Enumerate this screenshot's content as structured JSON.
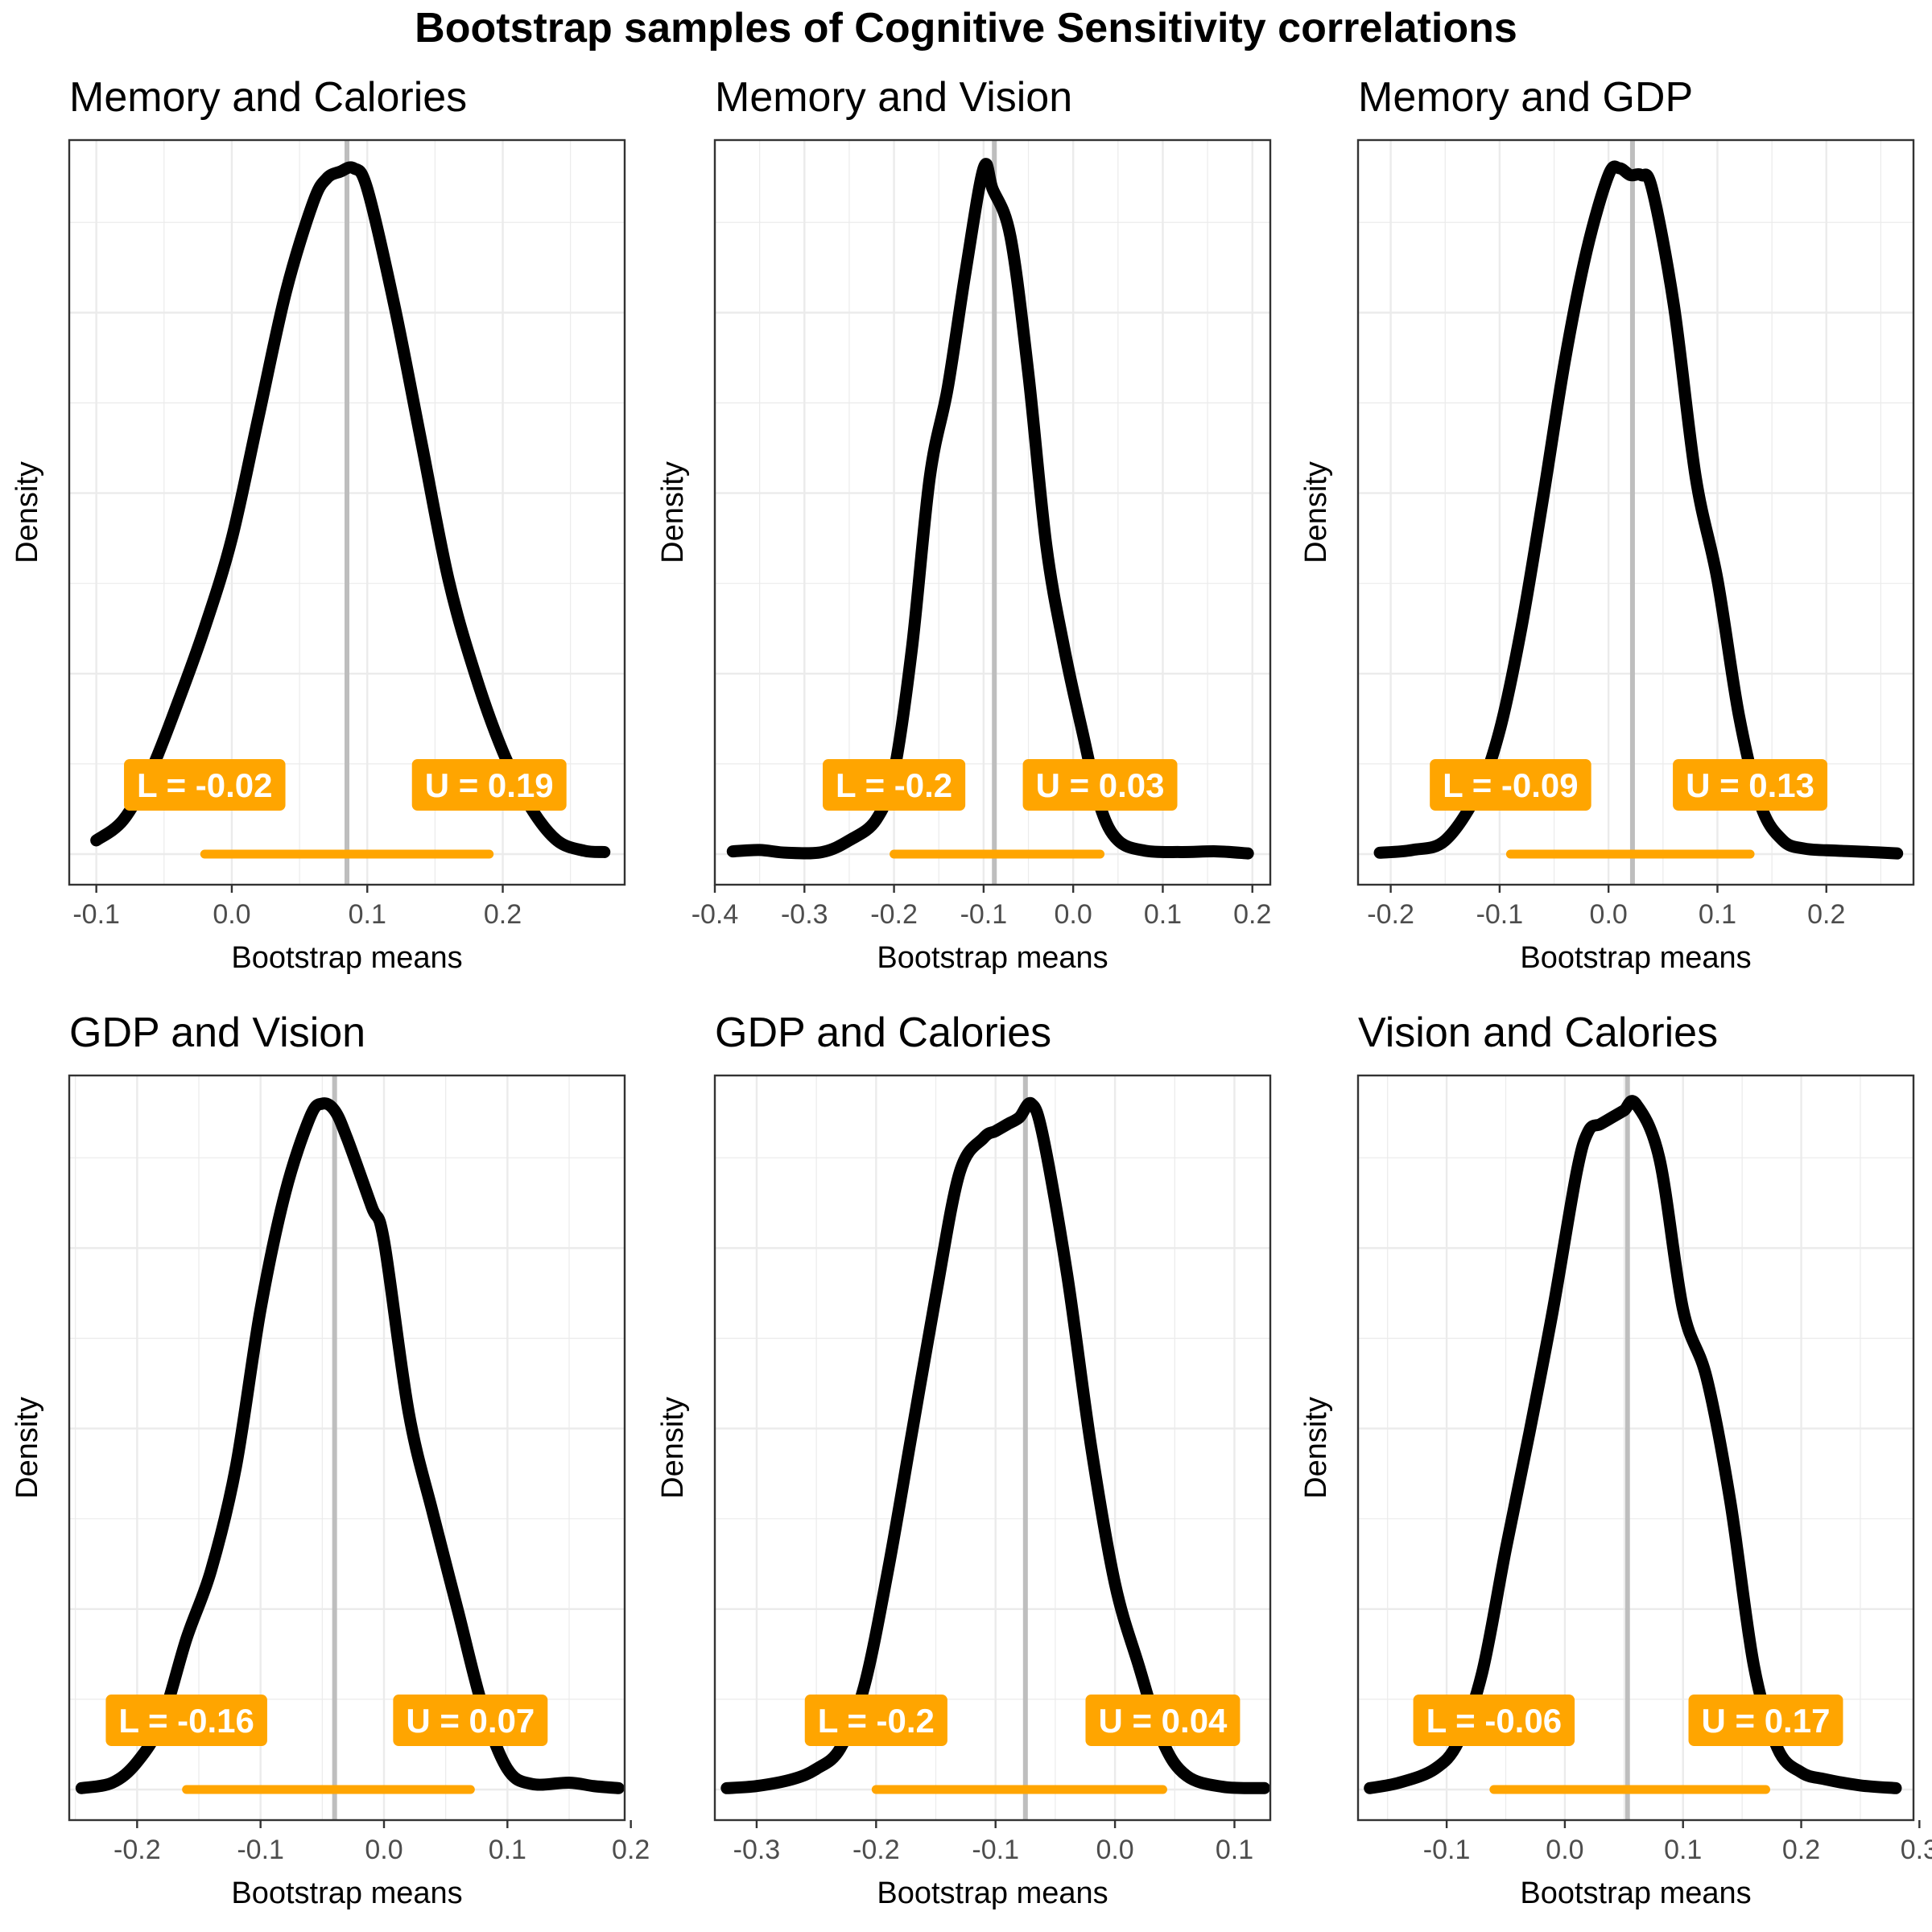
{
  "figure": {
    "title": "Bootstrap samples of Cognitive Sensitivity correlations"
  },
  "colors": {
    "density": "#000000",
    "mean_line": "#bebebe",
    "interval": "#ffa500",
    "label_text": "#ffffff",
    "grid": "#ebebeb",
    "panel_border": "#333333"
  },
  "chart_data": [
    {
      "type": "line",
      "title": "Memory and Calories",
      "xlabel": "Bootstrap means",
      "ylabel": "Density",
      "xlim": [
        -0.12,
        0.29
      ],
      "x_ticks": [
        -0.1,
        0.0,
        0.1,
        0.2
      ],
      "x_tick_labels": [
        "-0.1",
        "0.0",
        "0.1",
        "0.2"
      ],
      "y_axis_labels_shown": false,
      "grid": true,
      "mean": 0.085,
      "interval": {
        "lower": -0.02,
        "upper": 0.19
      },
      "interval_labels": {
        "lower": "L =  -0.02",
        "upper": "U =  0.19"
      },
      "density_curve": {
        "x": [
          -0.1,
          -0.08,
          -0.06,
          -0.04,
          -0.02,
          0.0,
          0.02,
          0.04,
          0.06,
          0.07,
          0.08,
          0.09,
          0.1,
          0.12,
          0.14,
          0.16,
          0.18,
          0.2,
          0.22,
          0.24,
          0.26,
          0.275
        ],
        "density": [
          0.02,
          0.05,
          0.12,
          0.22,
          0.33,
          0.46,
          0.64,
          0.82,
          0.95,
          0.985,
          0.995,
          1.0,
          0.97,
          0.8,
          0.6,
          0.4,
          0.26,
          0.15,
          0.07,
          0.02,
          0.005,
          0.003
        ]
      }
    },
    {
      "type": "line",
      "title": "Memory and Vision",
      "xlabel": "Bootstrap means",
      "ylabel": "Density",
      "xlim": [
        -0.4,
        0.22
      ],
      "x_ticks": [
        -0.4,
        -0.3,
        -0.2,
        -0.1,
        0.0,
        0.1,
        0.2
      ],
      "x_tick_labels": [
        "-0.4",
        "-0.3",
        "-0.2",
        "-0.1",
        "0.0",
        "0.1",
        "0.2"
      ],
      "y_axis_labels_shown": false,
      "grid": true,
      "mean": -0.088,
      "interval": {
        "lower": -0.2,
        "upper": 0.03
      },
      "interval_labels": {
        "lower": "L =  -0.2",
        "upper": "U =  0.03"
      },
      "density_curve": {
        "x": [
          -0.38,
          -0.35,
          -0.32,
          -0.28,
          -0.25,
          -0.22,
          -0.2,
          -0.18,
          -0.16,
          -0.14,
          -0.12,
          -0.1,
          -0.09,
          -0.07,
          -0.05,
          -0.03,
          -0.01,
          0.01,
          0.03,
          0.05,
          0.08,
          0.12,
          0.16,
          0.195
        ],
        "density": [
          0.004,
          0.006,
          0.002,
          0.003,
          0.02,
          0.05,
          0.12,
          0.3,
          0.55,
          0.68,
          0.85,
          1.0,
          0.97,
          0.9,
          0.7,
          0.45,
          0.3,
          0.18,
          0.07,
          0.02,
          0.005,
          0.003,
          0.004,
          0.001
        ]
      }
    },
    {
      "type": "line",
      "title": "Memory and GDP",
      "xlabel": "Bootstrap means",
      "ylabel": "Density",
      "xlim": [
        -0.23,
        0.28
      ],
      "x_ticks": [
        -0.2,
        -0.1,
        0.0,
        0.1,
        0.2
      ],
      "x_tick_labels": [
        "-0.2",
        "-0.1",
        "0.0",
        "0.1",
        "0.2"
      ],
      "y_axis_labels_shown": false,
      "grid": true,
      "mean": 0.022,
      "interval": {
        "lower": -0.09,
        "upper": 0.13
      },
      "interval_labels": {
        "lower": "L =  -0.09",
        "upper": "U =  0.13"
      },
      "density_curve": {
        "x": [
          -0.21,
          -0.18,
          -0.15,
          -0.12,
          -0.1,
          -0.08,
          -0.06,
          -0.04,
          -0.02,
          0.0,
          0.01,
          0.02,
          0.03,
          0.04,
          0.06,
          0.08,
          0.1,
          0.12,
          0.14,
          0.16,
          0.18,
          0.21,
          0.24,
          0.265
        ],
        "density": [
          0.002,
          0.006,
          0.02,
          0.09,
          0.18,
          0.33,
          0.52,
          0.72,
          0.88,
          0.99,
          1.0,
          0.99,
          0.99,
          0.97,
          0.8,
          0.55,
          0.4,
          0.2,
          0.07,
          0.02,
          0.008,
          0.005,
          0.003,
          0.001
        ]
      }
    },
    {
      "type": "line",
      "title": "GDP and Vision",
      "xlabel": "Bootstrap means",
      "ylabel": "Density",
      "xlim": [
        -0.255,
        0.195
      ],
      "x_ticks": [
        -0.2,
        -0.1,
        0.0,
        0.1,
        0.2
      ],
      "x_tick_labels": [
        "-0.2",
        "-0.1",
        "0.0",
        "0.1",
        "0.2"
      ],
      "y_axis_labels_shown": false,
      "grid": true,
      "mean": -0.04,
      "interval": {
        "lower": -0.16,
        "upper": 0.07
      },
      "interval_labels": {
        "lower": "L =  -0.16",
        "upper": "U =  0.07"
      },
      "density_curve": {
        "x": [
          -0.245,
          -0.22,
          -0.2,
          -0.18,
          -0.16,
          -0.14,
          -0.12,
          -0.1,
          -0.08,
          -0.06,
          -0.05,
          -0.04,
          -0.03,
          -0.01,
          0.0,
          0.02,
          0.04,
          0.06,
          0.08,
          0.1,
          0.12,
          0.15,
          0.17,
          0.19
        ],
        "density": [
          0.002,
          0.01,
          0.04,
          0.1,
          0.22,
          0.32,
          0.47,
          0.7,
          0.87,
          0.98,
          1.0,
          0.99,
          0.95,
          0.85,
          0.8,
          0.55,
          0.4,
          0.26,
          0.12,
          0.03,
          0.008,
          0.01,
          0.005,
          0.002
        ]
      }
    },
    {
      "type": "line",
      "title": "GDP and Calories",
      "xlabel": "Bootstrap means",
      "ylabel": "Density",
      "xlim": [
        -0.335,
        0.13
      ],
      "x_ticks": [
        -0.3,
        -0.2,
        -0.1,
        0.0,
        0.1
      ],
      "x_tick_labels": [
        "-0.3",
        "-0.2",
        "-0.1",
        "0.0",
        "0.1"
      ],
      "y_axis_labels_shown": false,
      "grid": true,
      "mean": -0.075,
      "interval": {
        "lower": -0.2,
        "upper": 0.04
      },
      "interval_labels": {
        "lower": "L =  -0.2",
        "upper": "U =  0.04"
      },
      "density_curve": {
        "x": [
          -0.325,
          -0.3,
          -0.27,
          -0.25,
          -0.23,
          -0.21,
          -0.19,
          -0.17,
          -0.15,
          -0.13,
          -0.11,
          -0.1,
          -0.09,
          -0.08,
          -0.07,
          -0.06,
          -0.04,
          -0.02,
          0.0,
          0.02,
          0.04,
          0.06,
          0.09,
          0.125
        ],
        "density": [
          0.002,
          0.005,
          0.015,
          0.03,
          0.06,
          0.15,
          0.32,
          0.52,
          0.72,
          0.9,
          0.95,
          0.96,
          0.97,
          0.98,
          1.0,
          0.95,
          0.75,
          0.5,
          0.3,
          0.18,
          0.07,
          0.02,
          0.004,
          0.002
        ]
      }
    },
    {
      "type": "line",
      "title": "Vision and Calories",
      "xlabel": "Bootstrap means",
      "ylabel": "Density",
      "xlim": [
        -0.175,
        0.295
      ],
      "x_ticks": [
        -0.1,
        0.0,
        0.1,
        0.2,
        0.3
      ],
      "x_tick_labels": [
        "-0.1",
        "0.0",
        "0.1",
        "0.2",
        "0.3"
      ],
      "y_axis_labels_shown": false,
      "grid": true,
      "mean": 0.053,
      "interval": {
        "lower": -0.06,
        "upper": 0.17
      },
      "interval_labels": {
        "lower": "L =  -0.06",
        "upper": "U =  0.17"
      },
      "density_curve": {
        "x": [
          -0.165,
          -0.14,
          -0.11,
          -0.09,
          -0.07,
          -0.05,
          -0.03,
          -0.01,
          0.01,
          0.02,
          0.03,
          0.04,
          0.05,
          0.06,
          0.08,
          0.1,
          0.12,
          0.14,
          0.16,
          0.18,
          0.2,
          0.22,
          0.25,
          0.28
        ],
        "density": [
          0.002,
          0.01,
          0.03,
          0.07,
          0.17,
          0.35,
          0.52,
          0.7,
          0.9,
          0.96,
          0.97,
          0.98,
          0.99,
          1.0,
          0.92,
          0.7,
          0.6,
          0.42,
          0.18,
          0.06,
          0.025,
          0.015,
          0.006,
          0.002
        ]
      }
    }
  ]
}
